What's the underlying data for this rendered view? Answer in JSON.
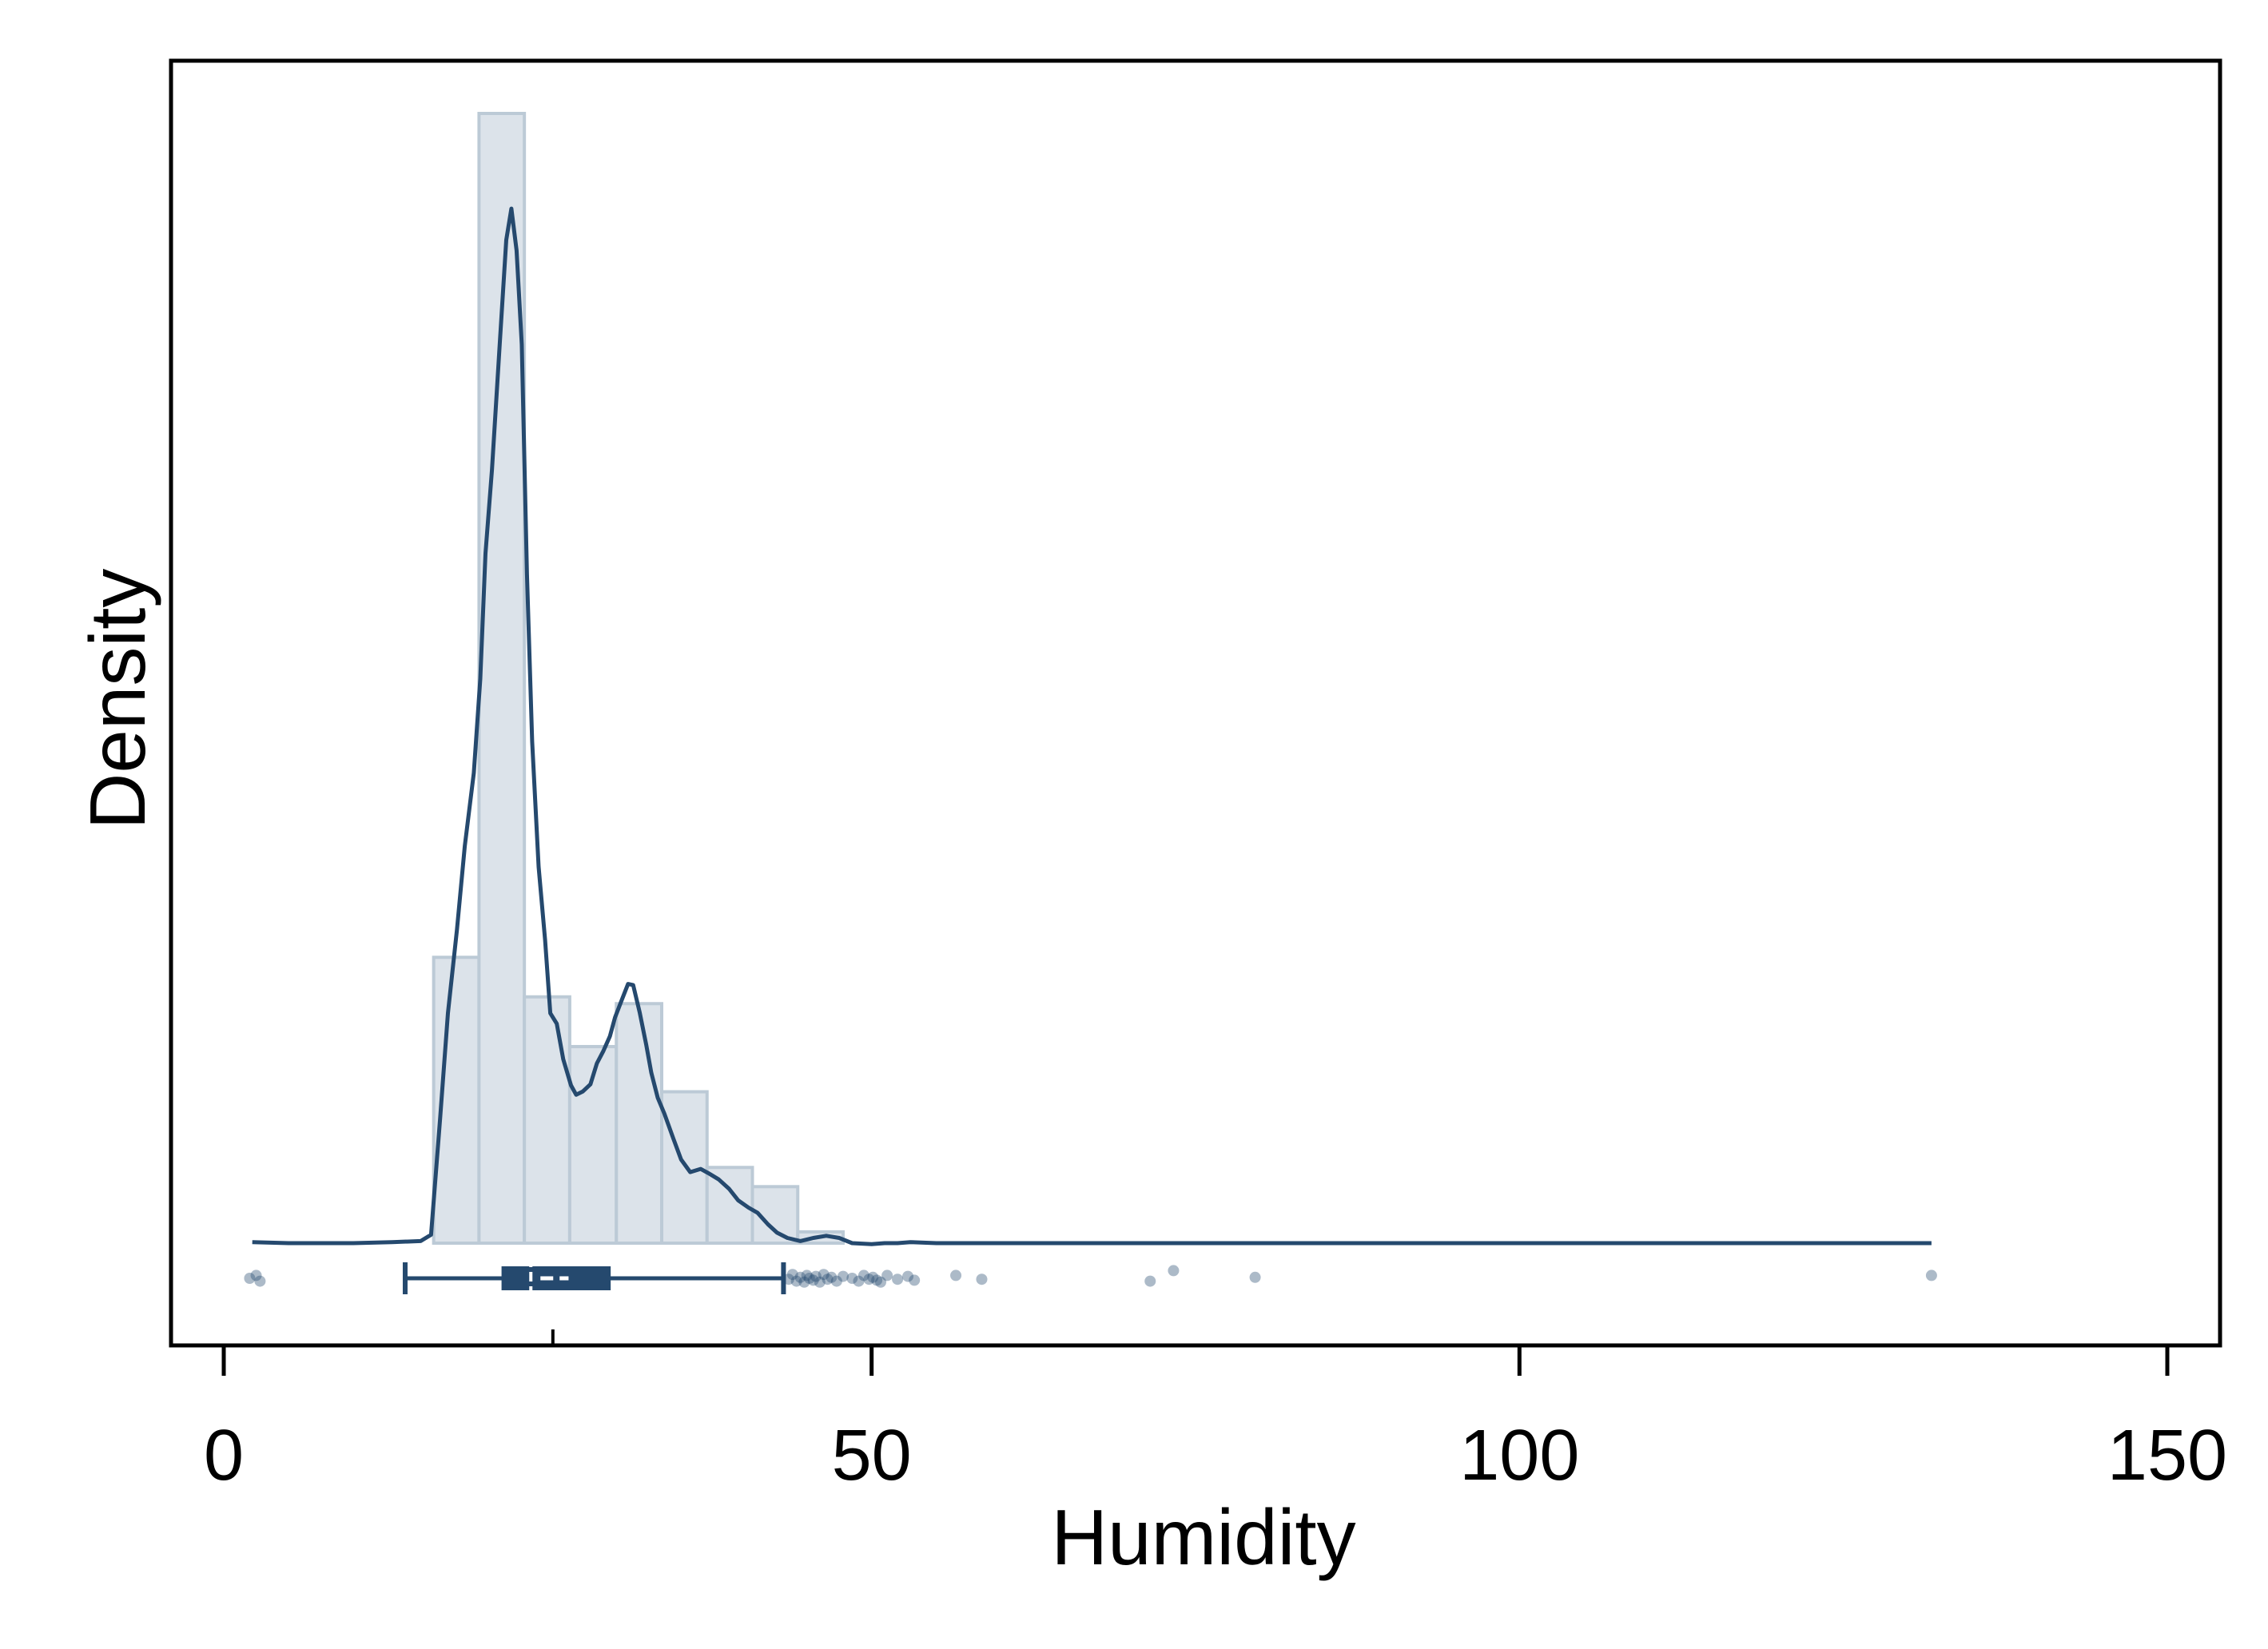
{
  "chart_data": {
    "type": "histogram",
    "xlabel": "Humidity",
    "ylabel": "Density",
    "xlim": [
      -4,
      154
    ],
    "x_ticks": [
      0,
      50,
      100,
      150
    ],
    "x_tick_labels": [
      "0",
      "50",
      "100",
      "150"
    ],
    "grid": false,
    "colors": {
      "bar_fill": "#dce3ea",
      "bar_stroke": "#bccad6",
      "line": "#25496e",
      "box": "#25496e",
      "points": "#25496e"
    },
    "histogram": {
      "bin_edges": [
        16.2,
        19.7,
        23.2,
        26.7,
        30.3,
        33.8,
        37.3,
        40.8,
        44.3,
        47.8
      ],
      "relative_heights": [
        0.253,
        1.0,
        0.218,
        0.174,
        0.212,
        0.134,
        0.067,
        0.05,
        0.01
      ]
    },
    "density_curve": {
      "x": [
        2.2,
        5,
        10,
        13,
        15.2,
        16,
        16.7,
        17.3,
        18.0,
        18.6,
        19.3,
        19.8,
        20.2,
        20.7,
        21.3,
        21.8,
        22.2,
        22.6,
        23.0,
        23.4,
        23.8,
        24.3,
        24.8,
        25.2,
        25.7,
        26.2,
        26.8,
        27.2,
        27.7,
        28.3,
        28.8,
        29.3,
        29.8,
        30.2,
        30.7,
        31.2,
        31.6,
        32.1,
        32.6,
        33.0,
        33.5,
        34.0,
        34.7,
        35.3,
        36.0,
        36.8,
        37.4,
        38.2,
        39.0,
        39.7,
        40.5,
        41.2,
        42.0,
        42.7,
        43.5,
        44.5,
        45.5,
        46.5,
        47.5,
        48.5,
        50,
        51,
        52,
        53,
        55,
        60,
        70,
        80,
        90,
        100,
        110,
        120,
        131.8
      ],
      "y": [
        0.001,
        0,
        0,
        0.001,
        0.002,
        0.008,
        0.12,
        0.22,
        0.3,
        0.38,
        0.45,
        0.54,
        0.66,
        0.74,
        0.86,
        0.96,
        0.99,
        0.95,
        0.86,
        0.64,
        0.48,
        0.36,
        0.29,
        0.22,
        0.21,
        0.176,
        0.151,
        0.142,
        0.145,
        0.152,
        0.172,
        0.184,
        0.198,
        0.216,
        0.232,
        0.248,
        0.247,
        0.221,
        0.19,
        0.163,
        0.139,
        0.124,
        0.1,
        0.08,
        0.068,
        0.071,
        0.067,
        0.061,
        0.052,
        0.041,
        0.034,
        0.029,
        0.018,
        0.01,
        0.005,
        0.002,
        0.005,
        0.007,
        0.005,
        0.0,
        -0.001,
        0.0,
        0.0,
        0.001,
        0.0,
        0.0,
        0.0,
        0.0,
        0.0,
        0.0,
        0.0,
        0.0,
        0.0
      ]
    },
    "boxplot": {
      "whisker_low": 14.0,
      "q1": 21.5,
      "median": 23.7,
      "mean": 25.5,
      "q3": 29.8,
      "whisker_high": 43.2
    },
    "outliers": [
      {
        "x": 2.0,
        "jitter": 0.0
      },
      {
        "x": 2.5,
        "jitter": -0.3
      },
      {
        "x": 2.8,
        "jitter": 0.3
      },
      {
        "x": 43.6,
        "jitter": 0.1
      },
      {
        "x": 43.9,
        "jitter": -0.4
      },
      {
        "x": 44.2,
        "jitter": 0.3
      },
      {
        "x": 44.5,
        "jitter": -0.1
      },
      {
        "x": 44.8,
        "jitter": 0.4
      },
      {
        "x": 45.0,
        "jitter": -0.3
      },
      {
        "x": 45.2,
        "jitter": 0.0
      },
      {
        "x": 45.5,
        "jitter": 0.2
      },
      {
        "x": 45.7,
        "jitter": -0.2
      },
      {
        "x": 46.0,
        "jitter": 0.4
      },
      {
        "x": 46.3,
        "jitter": -0.4
      },
      {
        "x": 46.6,
        "jitter": 0.1
      },
      {
        "x": 46.9,
        "jitter": -0.1
      },
      {
        "x": 47.3,
        "jitter": 0.3
      },
      {
        "x": 47.8,
        "jitter": -0.2
      },
      {
        "x": 48.5,
        "jitter": 0.0
      },
      {
        "x": 49.0,
        "jitter": 0.3
      },
      {
        "x": 49.4,
        "jitter": -0.3
      },
      {
        "x": 49.8,
        "jitter": 0.1
      },
      {
        "x": 50.1,
        "jitter": -0.1
      },
      {
        "x": 50.4,
        "jitter": 0.2
      },
      {
        "x": 50.7,
        "jitter": 0.4
      },
      {
        "x": 51.2,
        "jitter": -0.3
      },
      {
        "x": 52.0,
        "jitter": 0.1
      },
      {
        "x": 52.8,
        "jitter": -0.2
      },
      {
        "x": 53.3,
        "jitter": 0.2
      },
      {
        "x": 56.5,
        "jitter": -0.3
      },
      {
        "x": 58.5,
        "jitter": 0.1
      },
      {
        "x": 71.5,
        "jitter": 0.3
      },
      {
        "x": 73.3,
        "jitter": -0.8
      },
      {
        "x": 79.6,
        "jitter": -0.1
      },
      {
        "x": 131.8,
        "jitter": -0.3
      }
    ]
  }
}
